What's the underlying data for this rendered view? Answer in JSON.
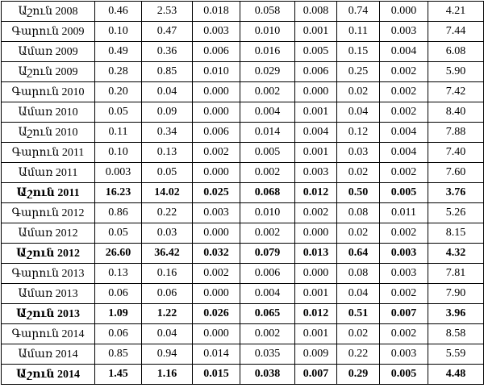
{
  "table": {
    "rows": [
      {
        "bold": false,
        "cells": [
          "Աշուն 2008",
          "0.46",
          "2.53",
          "0.018",
          "0.058",
          "0.008",
          "0.74",
          "0.000",
          "4.21"
        ]
      },
      {
        "bold": false,
        "cells": [
          "Գարուն 2009",
          "0.10",
          "0.47",
          "0.003",
          "0.010",
          "0.001",
          "0.11",
          "0.003",
          "7.44"
        ]
      },
      {
        "bold": false,
        "cells": [
          "Ամառ 2009",
          "0.49",
          "0.36",
          "0.006",
          "0.016",
          "0.005",
          "0.15",
          "0.004",
          "6.08"
        ]
      },
      {
        "bold": false,
        "cells": [
          "Աշուն 2009",
          "0.28",
          "0.85",
          "0.010",
          "0.029",
          "0.006",
          "0.25",
          "0.002",
          "5.90"
        ]
      },
      {
        "bold": false,
        "cells": [
          "Գարուն 2010",
          "0.20",
          "0.04",
          "0.000",
          "0.002",
          "0.000",
          "0.02",
          "0.002",
          "7.42"
        ]
      },
      {
        "bold": false,
        "cells": [
          "Ամառ 2010",
          "0.05",
          "0.09",
          "0.000",
          "0.004",
          "0.001",
          "0.04",
          "0.002",
          "8.40"
        ]
      },
      {
        "bold": false,
        "cells": [
          "Աշուն 2010",
          "0.11",
          "0.34",
          "0.006",
          "0.014",
          "0.004",
          "0.12",
          "0.004",
          "7.88"
        ]
      },
      {
        "bold": false,
        "cells": [
          "Գարուն 2011",
          "0.10",
          "0.13",
          "0.002",
          "0.005",
          "0.001",
          "0.03",
          "0.004",
          "7.40"
        ]
      },
      {
        "bold": false,
        "cells": [
          "Ամառ 2011",
          "0.003",
          "0.05",
          "0.000",
          "0.002",
          "0.003",
          "0.02",
          "0.002",
          "7.60"
        ]
      },
      {
        "bold": true,
        "cells": [
          "Աշուն 2011",
          "16.23",
          "14.02",
          "0.025",
          "0.068",
          "0.012",
          "0.50",
          "0.005",
          "3.76"
        ]
      },
      {
        "bold": false,
        "cells": [
          "Գարուն 2012",
          "0.86",
          "0.22",
          "0.003",
          "0.010",
          "0.002",
          "0.08",
          "0.011",
          "5.26"
        ]
      },
      {
        "bold": false,
        "cells": [
          "Ամառ 2012",
          "0.05",
          "0.03",
          "0.000",
          "0.002",
          "0.000",
          "0.02",
          "0.002",
          "8.15"
        ]
      },
      {
        "bold": true,
        "cells": [
          "Աշուն 2012",
          "26.60",
          "36.42",
          "0.032",
          "0.079",
          "0.013",
          "0.64",
          "0.003",
          "4.32"
        ]
      },
      {
        "bold": false,
        "cells": [
          "Գարուն 2013",
          "0.13",
          "0.16",
          "0.002",
          "0.006",
          "0.000",
          "0.08",
          "0.003",
          "7.81"
        ]
      },
      {
        "bold": false,
        "cells": [
          "Ամառ 2013",
          "0.06",
          "0.06",
          "0.000",
          "0.004",
          "0.001",
          "0.04",
          "0.002",
          "7.90"
        ]
      },
      {
        "bold": true,
        "cells": [
          "Աշուն 2013",
          "1.09",
          "1.22",
          "0.026",
          "0.065",
          "0.012",
          "0.51",
          "0.007",
          "3.96"
        ]
      },
      {
        "bold": false,
        "cells": [
          "Գարուն 2014",
          "0.06",
          "0.04",
          "0.000",
          "0.002",
          "0.001",
          "0.02",
          "0.002",
          "8.58"
        ]
      },
      {
        "bold": false,
        "cells": [
          "Ամառ 2014",
          "0.85",
          "0.94",
          "0.014",
          "0.035",
          "0.009",
          "0.22",
          "0.003",
          "5.59"
        ]
      },
      {
        "bold": true,
        "cells": [
          "Աշուն 2014",
          "1.45",
          "1.16",
          "0.015",
          "0.038",
          "0.007",
          "0.29",
          "0.005",
          "4.48"
        ]
      }
    ]
  }
}
